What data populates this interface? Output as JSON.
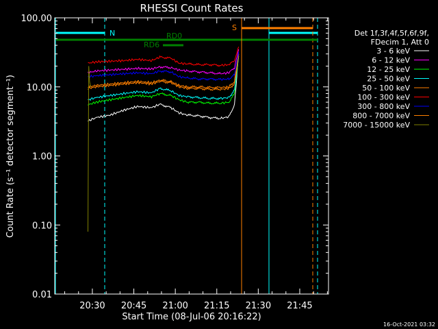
{
  "chart_data": {
    "type": "line",
    "title": "RHESSI Count Rates",
    "xlabel": "Start Time (08-Jul-06 20:16:22)",
    "ylabel": "Count Rate (s⁻¹ detector segment⁻¹)",
    "yscale": "log",
    "ylim": [
      0.01,
      100
    ],
    "xlim_minutes": [
      0,
      66
    ],
    "x_ticks": [
      {
        "label": "20:30",
        "minutes": 13.6
      },
      {
        "label": "20:45",
        "minutes": 28.6
      },
      {
        "label": "21:00",
        "minutes": 43.6
      },
      {
        "label": "21:15",
        "minutes": 58.6
      },
      {
        "label": "21:30",
        "minutes": 73.6
      },
      {
        "label": "21:45",
        "minutes": 88.6
      }
    ],
    "y_ticks": [
      {
        "label": "0.01",
        "value": 0.01
      },
      {
        "label": "0.10",
        "value": 0.1
      },
      {
        "label": "1.00",
        "value": 1
      },
      {
        "label": "10.00",
        "value": 10
      },
      {
        "label": "100.00",
        "value": 100
      }
    ],
    "x_axis_minutes_range": [
      0,
      99
    ],
    "legend_header": [
      "Det 1f,3f,4f,5f,6f,9f,",
      "FDecim 1, Att 0"
    ],
    "legend_position": "right",
    "series": [
      {
        "name": "3 - 6 keV",
        "color": "#ffffff",
        "x": [
          12,
          15,
          20,
          25,
          30,
          35,
          38,
          42,
          45,
          48,
          52,
          56,
          60,
          63,
          65,
          66.5
        ],
        "y": [
          3.2,
          3.6,
          3.9,
          4.6,
          5.2,
          5.0,
          5.6,
          5.0,
          4.2,
          3.9,
          3.8,
          3.6,
          3.5,
          3.7,
          5.5,
          30
        ]
      },
      {
        "name": "6 - 12 keV",
        "color": "#ff00ff",
        "x": [
          12,
          15,
          20,
          25,
          30,
          35,
          38,
          42,
          45,
          48,
          52,
          56,
          60,
          63,
          65,
          66.5
        ],
        "y": [
          16,
          17,
          17.5,
          18,
          18.5,
          18.2,
          19.5,
          19,
          17.5,
          17,
          16.5,
          16,
          15.5,
          16,
          19,
          35
        ]
      },
      {
        "name": "12 - 25 keV",
        "color": "#00ff00",
        "x": [
          12,
          15,
          20,
          25,
          30,
          35,
          38,
          42,
          45,
          48,
          52,
          56,
          60,
          63,
          65,
          66.5
        ],
        "y": [
          5.5,
          6.0,
          6.5,
          7.0,
          7.5,
          7.2,
          8.0,
          7.5,
          6.5,
          6.0,
          6.0,
          5.8,
          5.8,
          6.0,
          8.0,
          28
        ]
      },
      {
        "name": "25 - 50 keV",
        "color": "#00ffff",
        "x": [
          12,
          15,
          20,
          25,
          30,
          35,
          38,
          42,
          45,
          48,
          52,
          56,
          60,
          63,
          65,
          66.5
        ],
        "y": [
          6.5,
          7.0,
          7.5,
          8.0,
          8.5,
          8.2,
          9.5,
          8.8,
          7.5,
          7.2,
          7.0,
          6.8,
          6.8,
          7.0,
          9.0,
          28
        ]
      },
      {
        "name": "50 - 100 keV",
        "color": "#ff8000",
        "x": [
          12,
          15,
          20,
          25,
          30,
          35,
          38,
          42,
          45,
          48,
          52,
          56,
          60,
          63,
          65,
          66.5
        ],
        "y": [
          10,
          10.5,
          11,
          11.5,
          12,
          11.5,
          12.5,
          12,
          10.5,
          10,
          10,
          9.8,
          9.8,
          10,
          12,
          30
        ]
      },
      {
        "name": "100 - 300 keV",
        "color": "#ff0000",
        "x": [
          12,
          15,
          20,
          25,
          30,
          35,
          38,
          42,
          45,
          48,
          52,
          56,
          60,
          63,
          65,
          66.5
        ],
        "y": [
          22,
          23,
          23.5,
          24,
          25,
          24,
          27,
          26,
          22,
          21.5,
          21,
          21,
          20.5,
          21,
          24,
          38
        ]
      },
      {
        "name": "300 - 800 keV",
        "color": "#0000ff",
        "x": [
          12,
          15,
          20,
          25,
          30,
          35,
          38,
          42,
          45,
          48,
          52,
          56,
          60,
          63,
          65,
          66.5
        ],
        "y": [
          14,
          14.5,
          15,
          15.5,
          16,
          15.5,
          17,
          16.5,
          14,
          13.5,
          13,
          13,
          12.8,
          13,
          15,
          32
        ]
      },
      {
        "name": "800 - 7000 keV",
        "color": "#ff8000",
        "x": [
          12,
          15,
          20,
          25,
          30,
          35,
          38,
          42,
          45,
          48,
          52,
          56,
          60,
          63,
          65,
          66.5
        ],
        "y": [
          9.5,
          10,
          10.5,
          11,
          11.5,
          11,
          12,
          11.5,
          10,
          9.5,
          9.5,
          9.2,
          9.2,
          9.5,
          11,
          28
        ]
      },
      {
        "name": "7000 - 15000 keV",
        "color": "#808000",
        "x": [
          12,
          12.3,
          12.6,
          13
        ],
        "y": [
          0.08,
          20,
          12,
          10
        ]
      }
    ],
    "annotations": [
      {
        "label": "N",
        "color": "#00ffff"
      },
      {
        "label": "S",
        "color": "#ff8000"
      },
      {
        "label": "RD0",
        "color": "#008000"
      },
      {
        "label": "RD6",
        "color": "#008000"
      }
    ],
    "footer_date": "16-Oct-2021 03:32"
  }
}
